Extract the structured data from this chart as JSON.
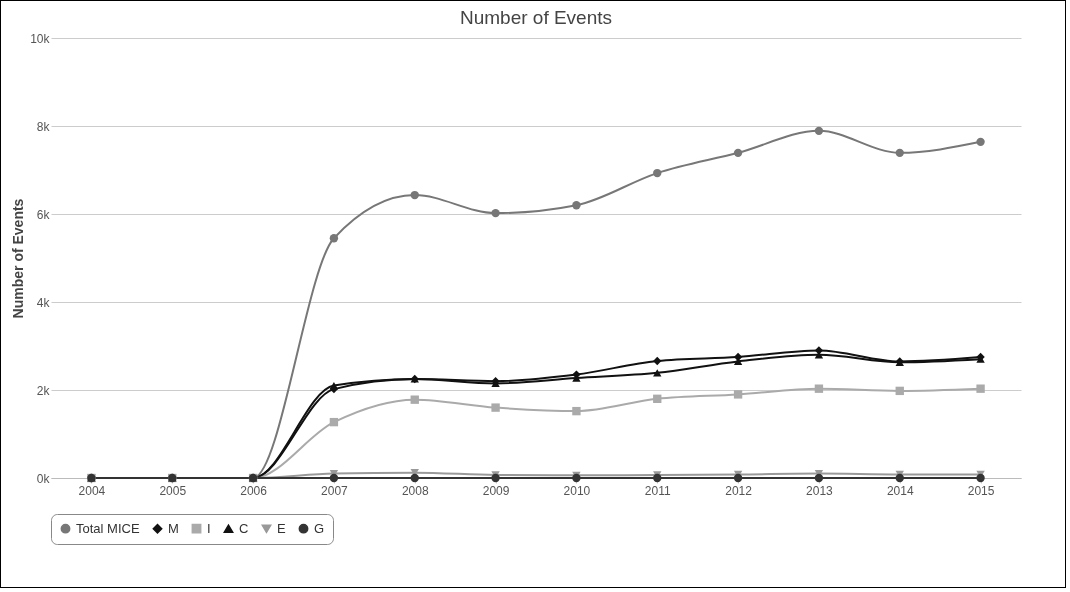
{
  "chart_data": {
    "type": "line",
    "title": "Number of Events",
    "ylabel": "Number of Events",
    "categories": [
      "2004",
      "2005",
      "2006",
      "2007",
      "2008",
      "2009",
      "2010",
      "2011",
      "2012",
      "2013",
      "2014",
      "2015"
    ],
    "series": [
      {
        "name": "Total MICE",
        "color": "#777777",
        "marker": "circle",
        "values": [
          0,
          0,
          0,
          5450,
          6430,
          6020,
          6200,
          6930,
          7390,
          7890,
          7390,
          7640
        ]
      },
      {
        "name": "M",
        "color": "#111111",
        "marker": "diamond",
        "values": [
          0,
          0,
          0,
          2020,
          2250,
          2200,
          2350,
          2660,
          2750,
          2900,
          2650,
          2750
        ]
      },
      {
        "name": "I",
        "color": "#aaaaaa",
        "marker": "square",
        "values": [
          0,
          0,
          0,
          1270,
          1780,
          1600,
          1520,
          1800,
          1900,
          2030,
          1980,
          2030
        ]
      },
      {
        "name": "C",
        "color": "#111111",
        "marker": "triangle",
        "values": [
          0,
          0,
          0,
          2100,
          2250,
          2150,
          2270,
          2390,
          2650,
          2800,
          2630,
          2700
        ]
      },
      {
        "name": "E",
        "color": "#999999",
        "marker": "triangle-down",
        "values": [
          0,
          0,
          0,
          100,
          120,
          70,
          60,
          70,
          80,
          100,
          80,
          80
        ]
      },
      {
        "name": "G",
        "color": "#333333",
        "marker": "circle",
        "values": [
          0,
          0,
          0,
          0,
          0,
          0,
          0,
          0,
          0,
          0,
          0,
          0
        ]
      }
    ],
    "ylim": [
      0,
      10000
    ],
    "yticks": [
      {
        "value": 0,
        "label": "0k"
      },
      {
        "value": 2000,
        "label": "2k"
      },
      {
        "value": 4000,
        "label": "4k"
      },
      {
        "value": 6000,
        "label": "6k"
      },
      {
        "value": 8000,
        "label": "8k"
      },
      {
        "value": 10000,
        "label": "10k"
      }
    ],
    "grid": "y",
    "legend": "bottom"
  }
}
